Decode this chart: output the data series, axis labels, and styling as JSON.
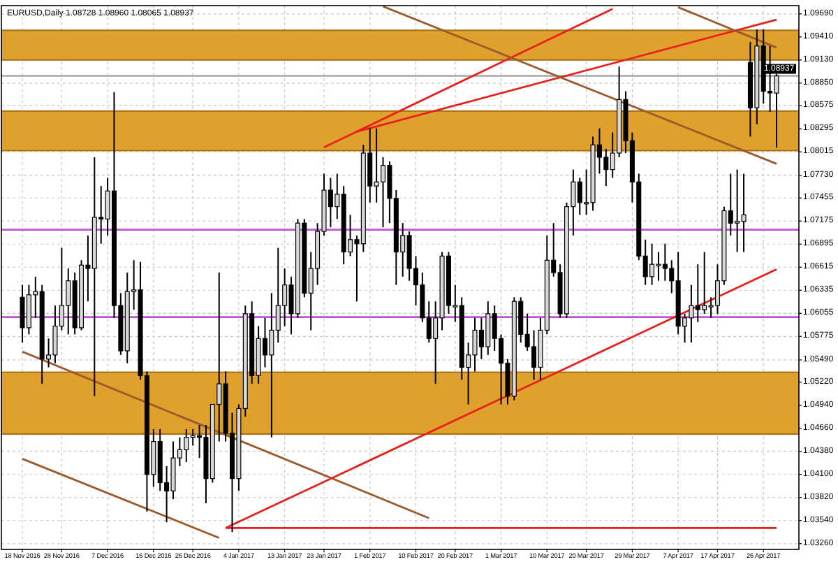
{
  "chart_data": {
    "type": "candlestick",
    "title": "EURUSD,Daily  1.08728 1.08960 1.08065 1.08937",
    "categories": [
      "18 Nov 2016",
      null,
      null,
      null,
      null,
      null,
      "28 Nov 2016",
      null,
      null,
      null,
      null,
      null,
      null,
      "7 Dec 2016",
      null,
      null,
      null,
      null,
      null,
      null,
      "16 Dec 2016",
      null,
      null,
      null,
      null,
      null,
      "26 Dec 2016",
      null,
      null,
      null,
      null,
      null,
      null,
      "4 Jan 2017",
      null,
      null,
      null,
      null,
      null,
      null,
      "13 Jan 2017",
      null,
      null,
      null,
      null,
      null,
      "23 Jan 2017",
      null,
      null,
      null,
      null,
      null,
      null,
      "1 Feb 2017",
      null,
      null,
      null,
      null,
      null,
      null,
      "10 Feb 2017",
      null,
      null,
      null,
      null,
      null,
      "20 Feb 2017",
      null,
      null,
      null,
      null,
      null,
      null,
      "1 Mar 2017",
      null,
      null,
      null,
      null,
      null,
      null,
      "10 Mar 2017",
      null,
      null,
      null,
      null,
      null,
      "20 Mar 2017",
      null,
      null,
      null,
      null,
      null,
      null,
      "29 Mar 2017",
      null,
      null,
      null,
      null,
      null,
      null,
      "7 Apr 2017",
      null,
      null,
      null,
      null,
      null,
      "17 Apr 2017",
      null,
      null,
      null,
      null,
      null,
      null,
      "26 Apr 2017",
      null,
      null
    ],
    "ohlc": [
      [
        1.0625,
        1.064,
        1.057,
        1.0588
      ],
      [
        1.0588,
        1.064,
        1.058,
        1.0628
      ],
      [
        1.0628,
        1.065,
        1.06,
        1.0632
      ],
      [
        1.0632,
        1.064,
        1.052,
        1.055
      ],
      [
        1.055,
        1.0575,
        1.054,
        1.0555
      ],
      [
        1.0555,
        1.0615,
        1.0545,
        1.059
      ],
      [
        1.059,
        1.0685,
        1.0585,
        1.0615
      ],
      [
        1.0615,
        1.066,
        1.058,
        1.0645
      ],
      [
        1.0645,
        1.0655,
        1.058,
        1.0588
      ],
      [
        1.0588,
        1.067,
        1.0585,
        1.0664
      ],
      [
        1.0664,
        1.07,
        1.062,
        1.066
      ],
      [
        1.066,
        1.0795,
        1.0505,
        1.0722
      ],
      [
        1.0722,
        1.076,
        1.069,
        1.072
      ],
      [
        1.072,
        1.077,
        1.07,
        1.0754
      ],
      [
        1.0754,
        1.0874,
        1.06,
        1.0615
      ],
      [
        1.0615,
        1.063,
        1.0555,
        1.056
      ],
      [
        1.056,
        1.0655,
        1.0545,
        1.0632
      ],
      [
        1.0632,
        1.067,
        1.061,
        1.0634
      ],
      [
        1.0634,
        1.0668,
        1.0525,
        1.053
      ],
      [
        1.053,
        1.0535,
        1.0365,
        1.041
      ],
      [
        1.041,
        1.0465,
        1.0395,
        1.045
      ],
      [
        1.045,
        1.0465,
        1.039,
        1.04
      ],
      [
        1.04,
        1.042,
        1.0352,
        1.039
      ],
      [
        1.039,
        1.045,
        1.038,
        1.043
      ],
      [
        1.043,
        1.0455,
        1.042,
        1.044
      ],
      [
        1.044,
        1.0465,
        1.0425,
        1.0455
      ],
      [
        1.0455,
        1.0465,
        1.0445,
        1.0457
      ],
      [
        1.0457,
        1.047,
        1.043,
        1.0455
      ],
      [
        1.0455,
        1.047,
        1.0375,
        1.0405
      ],
      [
        1.0405,
        1.0495,
        1.04,
        1.0495
      ],
      [
        1.0495,
        1.0655,
        1.045,
        1.052
      ],
      [
        1.052,
        1.0535,
        1.045,
        1.046
      ],
      [
        1.046,
        1.0485,
        1.034,
        1.0405
      ],
      [
        1.0405,
        1.0495,
        1.039,
        1.049
      ],
      [
        1.049,
        1.0615,
        1.048,
        1.0605
      ],
      [
        1.0605,
        1.062,
        1.052,
        1.053
      ],
      [
        1.053,
        1.059,
        1.052,
        1.0575
      ],
      [
        1.0575,
        1.06,
        1.054,
        1.0555
      ],
      [
        1.0555,
        1.063,
        1.0455,
        1.0585
      ],
      [
        1.0585,
        1.0685,
        1.057,
        1.0615
      ],
      [
        1.0615,
        1.066,
        1.059,
        1.064
      ],
      [
        1.064,
        1.065,
        1.058,
        1.0605
      ],
      [
        1.0605,
        1.072,
        1.06,
        1.0715
      ],
      [
        1.0715,
        1.072,
        1.0625,
        1.063
      ],
      [
        1.063,
        1.068,
        1.0585,
        1.066
      ],
      [
        1.066,
        1.0715,
        1.064,
        1.0705
      ],
      [
        1.0705,
        1.0775,
        1.07,
        1.0755
      ],
      [
        1.0755,
        1.077,
        1.071,
        1.0735
      ],
      [
        1.0735,
        1.0775,
        1.072,
        1.075
      ],
      [
        1.075,
        1.076,
        1.0665,
        1.068
      ],
      [
        1.068,
        1.0725,
        1.0675,
        1.0695
      ],
      [
        1.0695,
        1.07,
        1.062,
        1.069
      ],
      [
        1.069,
        1.081,
        1.068,
        1.08
      ],
      [
        1.08,
        1.083,
        1.074,
        1.076
      ],
      [
        1.076,
        1.083,
        1.074,
        1.0765
      ],
      [
        1.0765,
        1.0795,
        1.071,
        1.0785
      ],
      [
        1.0785,
        1.079,
        1.0715,
        1.0745
      ],
      [
        1.0745,
        1.0755,
        1.064,
        1.068
      ],
      [
        1.068,
        1.0715,
        1.065,
        1.07
      ],
      [
        1.07,
        1.0705,
        1.0645,
        1.066
      ],
      [
        1.066,
        1.0675,
        1.0615,
        1.064
      ],
      [
        1.064,
        1.0655,
        1.0595,
        1.06
      ],
      [
        1.06,
        1.062,
        1.057,
        1.0575
      ],
      [
        1.0575,
        1.062,
        1.052,
        1.06
      ],
      [
        1.06,
        1.068,
        1.0585,
        1.0675
      ],
      [
        1.0675,
        1.068,
        1.0605,
        1.0615
      ],
      [
        1.0615,
        1.064,
        1.0595,
        1.0615
      ],
      [
        1.0615,
        1.0625,
        1.0525,
        1.054
      ],
      [
        1.054,
        1.057,
        1.0495,
        1.0555
      ],
      [
        1.0555,
        1.06,
        1.0535,
        1.0585
      ],
      [
        1.0585,
        1.06,
        1.055,
        1.0565
      ],
      [
        1.0565,
        1.062,
        1.0555,
        1.0605
      ],
      [
        1.0605,
        1.0615,
        1.056,
        1.0575
      ],
      [
        1.0575,
        1.058,
        1.0495,
        1.0545
      ],
      [
        1.0545,
        1.055,
        1.0495,
        1.0505
      ],
      [
        1.0505,
        1.0625,
        1.05,
        1.062
      ],
      [
        1.062,
        1.0625,
        1.057,
        1.058
      ],
      [
        1.058,
        1.0605,
        1.056,
        1.0565
      ],
      [
        1.0565,
        1.0585,
        1.0525,
        1.054
      ],
      [
        1.054,
        1.06,
        1.0525,
        1.0585
      ],
      [
        1.0585,
        1.07,
        1.058,
        1.067
      ],
      [
        1.067,
        1.0715,
        1.065,
        1.0655
      ],
      [
        1.0655,
        1.0665,
        1.06,
        1.0605
      ],
      [
        1.0605,
        1.074,
        1.06,
        1.0735
      ],
      [
        1.0735,
        1.078,
        1.07,
        1.0765
      ],
      [
        1.0765,
        1.077,
        1.0725,
        1.074
      ],
      [
        1.074,
        1.078,
        1.0725,
        1.074
      ],
      [
        1.074,
        1.082,
        1.073,
        1.081
      ],
      [
        1.081,
        1.083,
        1.0775,
        1.0795
      ],
      [
        1.0795,
        1.0805,
        1.076,
        1.078
      ],
      [
        1.078,
        1.0825,
        1.077,
        1.08
      ],
      [
        1.08,
        1.0905,
        1.0795,
        1.0865
      ],
      [
        1.0865,
        1.0875,
        1.08,
        1.0815
      ],
      [
        1.0815,
        1.0825,
        1.074,
        1.0765
      ],
      [
        1.0765,
        1.0775,
        1.067,
        1.0675
      ],
      [
        1.0675,
        1.0695,
        1.064,
        1.065
      ],
      [
        1.065,
        1.069,
        1.064,
        1.0665
      ],
      [
        1.0665,
        1.068,
        1.0645,
        1.0665
      ],
      [
        1.0665,
        1.069,
        1.0645,
        1.066
      ],
      [
        1.066,
        1.067,
        1.063,
        1.0645
      ],
      [
        1.0645,
        1.068,
        1.058,
        1.059
      ],
      [
        1.059,
        1.0605,
        1.057,
        1.06
      ],
      [
        1.06,
        1.064,
        1.057,
        1.0615
      ],
      [
        1.0615,
        1.0665,
        1.0595,
        1.061
      ],
      [
        1.061,
        1.068,
        1.0605,
        1.0615
      ],
      [
        1.0615,
        1.0625,
        1.06,
        1.0615
      ],
      [
        1.0615,
        1.0665,
        1.0605,
        1.0645
      ],
      [
        1.0645,
        1.0735,
        1.064,
        1.073
      ],
      [
        1.073,
        1.0775,
        1.07,
        1.0715
      ],
      [
        1.0715,
        1.078,
        1.068,
        1.0717
      ],
      [
        1.0717,
        1.0775,
        1.068,
        1.0725
      ],
      [
        1.091,
        1.0935,
        1.082,
        1.0855
      ],
      [
        1.0855,
        1.095,
        1.0835,
        1.093
      ],
      [
        1.093,
        1.095,
        1.086,
        1.0875
      ],
      [
        1.0875,
        1.093,
        1.085,
        1.0873
      ],
      [
        1.08728,
        1.0896,
        1.08065,
        1.08937
      ]
    ],
    "series": [
      {
        "type": "line",
        "color": "#9b5a2a",
        "values": [
          1.0559,
          null,
          null,
          null,
          null,
          null,
          null,
          null,
          null,
          null,
          null,
          null,
          null,
          null,
          null,
          null,
          null,
          null,
          null,
          null,
          null,
          null,
          null,
          null,
          null,
          null,
          null,
          null,
          null,
          null,
          null,
          null,
          null,
          null,
          null,
          null,
          null,
          null,
          null,
          null,
          null,
          null,
          null,
          null,
          null,
          null,
          null,
          null,
          null,
          null,
          null,
          null,
          null,
          null,
          null,
          null,
          null,
          null,
          null,
          null,
          null,
          null,
          1.0357,
          null,
          null,
          null,
          null,
          null,
          null,
          null,
          null,
          null,
          null,
          null,
          null,
          null,
          null,
          null,
          null,
          null,
          null,
          null,
          null,
          null,
          null,
          null,
          null,
          null,
          null,
          null,
          null,
          null,
          null,
          null,
          null,
          null,
          null,
          null,
          null,
          null,
          null,
          null,
          null,
          null,
          null,
          null,
          null,
          null,
          null,
          null,
          null,
          null,
          null,
          null,
          null,
          null
        ]
      },
      {
        "type": "line",
        "color": "#9b5a2a",
        "values": [
          1.0429,
          null,
          null,
          null,
          null,
          null,
          null,
          null,
          null,
          null,
          null,
          null,
          null,
          null,
          null,
          null,
          null,
          null,
          null,
          null,
          null,
          null,
          null,
          null,
          null,
          null,
          null,
          null,
          null,
          null,
          1.0333,
          null,
          null,
          null,
          null,
          null,
          null,
          null,
          null,
          null,
          null,
          null,
          null,
          null,
          null,
          null,
          null,
          null,
          null,
          null,
          null,
          null,
          null,
          null,
          null,
          null,
          null,
          null,
          null,
          null,
          null,
          null,
          null,
          null,
          null,
          null,
          null,
          null,
          null,
          null,
          null,
          null,
          null,
          null,
          null,
          null,
          null,
          null,
          null,
          null,
          null,
          null,
          null,
          null,
          null,
          null,
          null,
          null,
          null,
          null,
          null,
          null,
          null,
          null,
          null,
          null,
          null,
          null,
          null,
          null,
          null,
          null,
          null,
          null,
          null,
          null,
          null,
          null,
          null,
          null,
          null,
          null,
          null,
          null,
          null,
          null
        ]
      },
      {
        "type": "line",
        "color": "#e8201c",
        "values": [
          null,
          null,
          null,
          null,
          null,
          null,
          null,
          null,
          null,
          null,
          null,
          null,
          null,
          null,
          null,
          null,
          null,
          null,
          null,
          null,
          null,
          null,
          null,
          null,
          null,
          null,
          null,
          null,
          null,
          null,
          null,
          1.0345,
          null,
          null,
          null,
          null,
          null,
          null,
          null,
          null,
          null,
          null,
          null,
          null,
          null,
          null,
          null,
          null,
          null,
          null,
          null,
          null,
          null,
          null,
          null,
          null,
          null,
          null,
          null,
          null,
          null,
          null,
          null,
          null,
          null,
          null,
          null,
          null,
          null,
          null,
          null,
          null,
          null,
          null,
          null,
          null,
          null,
          null,
          null,
          null,
          null,
          null,
          null,
          null,
          null,
          null,
          null,
          null,
          null,
          null,
          null,
          null,
          null,
          null,
          null,
          null,
          null,
          null,
          null,
          null,
          null,
          null,
          null,
          null,
          null,
          null,
          null,
          null,
          null,
          null,
          null,
          null,
          null,
          null,
          null,
          1.0659
        ]
      },
      {
        "type": "line",
        "color": "#e8201c",
        "values": [
          null,
          null,
          null,
          null,
          null,
          null,
          null,
          null,
          null,
          null,
          null,
          null,
          null,
          null,
          null,
          null,
          null,
          null,
          null,
          null,
          null,
          null,
          null,
          null,
          null,
          null,
          null,
          null,
          null,
          null,
          null,
          1.0345,
          null,
          null,
          null,
          null,
          null,
          null,
          null,
          null,
          null,
          null,
          null,
          null,
          null,
          null,
          null,
          null,
          null,
          null,
          null,
          null,
          null,
          null,
          null,
          null,
          null,
          null,
          null,
          null,
          null,
          null,
          null,
          null,
          null,
          null,
          null,
          null,
          null,
          null,
          null,
          null,
          null,
          null,
          null,
          null,
          null,
          null,
          null,
          null,
          null,
          null,
          null,
          null,
          null,
          null,
          null,
          null,
          null,
          null,
          null,
          null,
          null,
          null,
          null,
          null,
          null,
          null,
          null,
          null,
          null,
          null,
          null,
          null,
          null,
          null,
          null,
          null,
          null,
          null,
          null,
          null,
          null,
          null,
          null,
          1.0345
        ]
      },
      {
        "type": "line",
        "color": "#e8201c",
        "values": [
          null,
          null,
          null,
          null,
          null,
          null,
          null,
          null,
          null,
          null,
          null,
          null,
          null,
          null,
          null,
          null,
          null,
          null,
          null,
          null,
          null,
          null,
          null,
          null,
          null,
          null,
          null,
          null,
          null,
          null,
          null,
          null,
          null,
          null,
          null,
          null,
          null,
          null,
          null,
          null,
          null,
          null,
          null,
          null,
          null,
          null,
          1.0807,
          null,
          null,
          null,
          null,
          null,
          null,
          null,
          null,
          null,
          null,
          null,
          null,
          null,
          null,
          null,
          null,
          null,
          null,
          null,
          null,
          null,
          null,
          null,
          null,
          null,
          null,
          null,
          null,
          null,
          null,
          null,
          null,
          null,
          null,
          null,
          null,
          null,
          null,
          null,
          null,
          null,
          null,
          null,
          1.0975,
          null,
          null,
          null,
          null,
          null,
          null,
          null,
          null,
          null,
          null,
          null,
          null,
          null,
          null,
          null,
          null,
          null,
          null,
          null,
          null,
          null,
          null,
          null,
          null,
          null
        ]
      },
      {
        "type": "line",
        "color": "#e8201c",
        "values": [
          null,
          null,
          null,
          null,
          null,
          null,
          null,
          null,
          null,
          null,
          null,
          null,
          null,
          null,
          null,
          null,
          null,
          null,
          null,
          null,
          null,
          null,
          null,
          null,
          null,
          null,
          null,
          null,
          null,
          null,
          null,
          null,
          null,
          null,
          null,
          null,
          null,
          null,
          null,
          null,
          null,
          null,
          null,
          null,
          null,
          null,
          null,
          null,
          null,
          null,
          null,
          1.0826,
          null,
          null,
          null,
          null,
          null,
          null,
          null,
          null,
          null,
          null,
          null,
          null,
          null,
          null,
          null,
          null,
          null,
          null,
          null,
          null,
          null,
          null,
          null,
          null,
          null,
          null,
          null,
          null,
          null,
          null,
          null,
          null,
          null,
          null,
          null,
          null,
          null,
          null,
          null,
          null,
          null,
          null,
          null,
          null,
          null,
          null,
          null,
          null,
          null,
          null,
          null,
          null,
          null,
          null,
          null,
          null,
          null,
          null,
          null,
          null,
          null,
          null,
          null,
          1.0962
        ]
      },
      {
        "type": "line",
        "color": "#9b5a2a",
        "values": [
          null,
          null,
          null,
          null,
          null,
          null,
          null,
          null,
          null,
          null,
          null,
          null,
          null,
          null,
          null,
          null,
          null,
          null,
          null,
          null,
          null,
          null,
          null,
          null,
          null,
          null,
          null,
          null,
          null,
          null,
          null,
          null,
          null,
          null,
          null,
          null,
          null,
          null,
          null,
          null,
          null,
          null,
          null,
          null,
          null,
          null,
          null,
          null,
          null,
          null,
          null,
          null,
          null,
          null,
          null,
          1.0978,
          null,
          null,
          null,
          null,
          null,
          null,
          null,
          null,
          null,
          null,
          null,
          null,
          null,
          null,
          null,
          null,
          null,
          null,
          null,
          null,
          null,
          null,
          null,
          null,
          null,
          null,
          null,
          null,
          null,
          null,
          null,
          null,
          null,
          null,
          null,
          null,
          null,
          null,
          null,
          null,
          null,
          null,
          null,
          null,
          null,
          null,
          null,
          null,
          null,
          null,
          null,
          null,
          null,
          null,
          null,
          null,
          null,
          null,
          null,
          1.0787
        ]
      },
      {
        "type": "line",
        "color": "#9b5a2a",
        "values": [
          null,
          null,
          null,
          null,
          null,
          null,
          null,
          null,
          null,
          null,
          null,
          null,
          null,
          null,
          null,
          null,
          null,
          null,
          null,
          null,
          null,
          null,
          null,
          null,
          null,
          null,
          null,
          null,
          null,
          null,
          null,
          null,
          null,
          null,
          null,
          null,
          null,
          null,
          null,
          null,
          null,
          null,
          null,
          null,
          null,
          null,
          null,
          null,
          null,
          null,
          null,
          null,
          null,
          null,
          null,
          null,
          null,
          null,
          null,
          null,
          null,
          null,
          null,
          null,
          null,
          null,
          null,
          null,
          null,
          null,
          null,
          null,
          null,
          null,
          null,
          null,
          null,
          null,
          null,
          null,
          null,
          null,
          null,
          null,
          null,
          null,
          null,
          null,
          null,
          null,
          null,
          null,
          null,
          null,
          null,
          null,
          null,
          null,
          null,
          null,
          1.0977,
          null,
          null,
          null,
          null,
          null,
          null,
          null,
          null,
          null,
          null,
          null,
          null,
          null,
          null,
          1.0928
        ]
      }
    ],
    "ylim": [
      1.0319,
      1.0979
    ],
    "yticks": [
      {
        "value": 1.0969,
        "label": "1.09690"
      },
      {
        "value": 1.0941,
        "label": "1.09410"
      },
      {
        "value": 1.0913,
        "label": "1.09130"
      },
      {
        "value": 1.0885,
        "label": "1.08850"
      },
      1.08575,
      1.08295,
      1.08015,
      {
        "value": 1.0773,
        "label": "1.07730"
      },
      1.07455,
      1.07175,
      1.06895,
      1.06615,
      1.06335,
      1.06055,
      1.05775,
      {
        "value": 1.0549,
        "label": "1.05490"
      },
      {
        "value": 1.0522,
        "label": "1.05220"
      },
      {
        "value": 1.0494,
        "label": "1.04940"
      },
      {
        "value": 1.0466,
        "label": "1.04660"
      },
      {
        "value": 1.0438,
        "label": "1.04380"
      },
      {
        "value": 1.041,
        "label": "1.04100"
      },
      {
        "value": 1.0382,
        "label": "1.03820"
      },
      {
        "value": 1.0354,
        "label": "1.03540"
      },
      {
        "value": 1.0326,
        "label": "1.03260"
      }
    ],
    "bands": [
      {
        "axis": "y",
        "from": 1.0913,
        "to": 1.0949,
        "color": "#e0a12c"
      },
      {
        "axis": "y",
        "from": 1.0803,
        "to": 1.0851,
        "color": "#e0a12c"
      },
      {
        "axis": "y",
        "from": 1.0459,
        "to": 1.0534,
        "color": "#e0a12c"
      }
    ],
    "ref_lines": [
      {
        "axis": "y",
        "value": 1.0707,
        "color": "#c452d6"
      },
      {
        "axis": "y",
        "value": 1.0601,
        "color": "#c452d6"
      },
      {
        "axis": "y",
        "value": 1.08937,
        "label": "1.08937",
        "color": "#a8a8a8"
      }
    ],
    "grid": true,
    "line_style": "solid"
  }
}
